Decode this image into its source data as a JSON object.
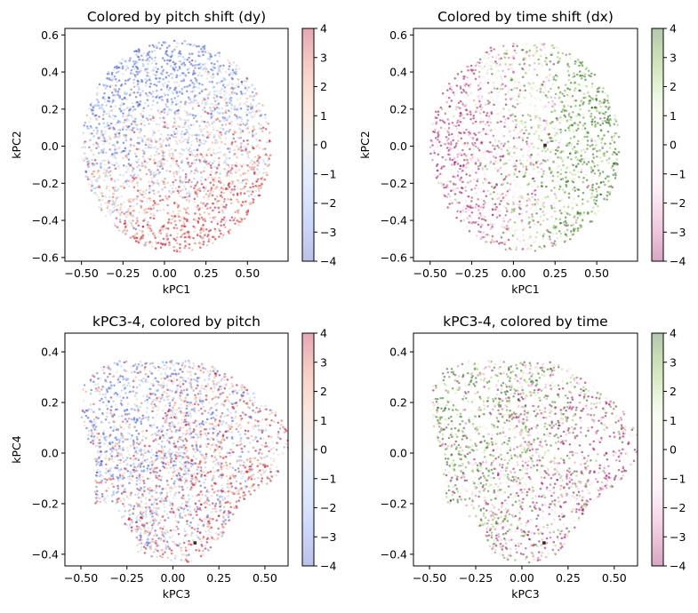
{
  "figure": {
    "layout": "2x2 subplots, each scatter with vertical colorbar on its right"
  },
  "chart_data": [
    {
      "type": "scatter",
      "id": "pitch12",
      "title": "Colored by pitch shift (dy)",
      "xlabel": "kPC1",
      "ylabel": "kPC2",
      "xlim": [
        -0.6,
        0.745
      ],
      "ylim": [
        -0.62,
        0.635
      ],
      "xticks": [
        -0.5,
        -0.25,
        0.0,
        0.25,
        0.5
      ],
      "xtick_labels": [
        "−0.50",
        "−0.25",
        "0.00",
        "0.25",
        "0.50"
      ],
      "yticks": [
        -0.6,
        -0.4,
        -0.2,
        0.0,
        0.2,
        0.4,
        0.6
      ],
      "ytick_labels": [
        "−0.6",
        "−0.4",
        "−0.2",
        "0.0",
        "0.2",
        "0.4",
        "0.6"
      ],
      "colormap": "coolwarm",
      "color_value": "pitch shift (dy)",
      "clim": [
        -4,
        4
      ],
      "cbar_ticks": [
        4,
        3,
        2,
        1,
        0,
        -1,
        -2,
        -3,
        -4
      ],
      "cbar_tick_labels": [
        "4",
        "3",
        "2",
        "1",
        "0",
        "−1",
        "−2",
        "−3",
        "−4"
      ],
      "alpha": 0.35,
      "cloud": {
        "shape": "disc",
        "center": [
          0.07,
          0.0
        ],
        "radius": 0.57,
        "n_points_approx": 9000,
        "gradient": "negative dy (blue) toward upper right, positive dy (red) toward lower left"
      },
      "highlight_points": []
    },
    {
      "type": "scatter",
      "id": "time12",
      "title": "Colored by time shift (dx)",
      "xlabel": "kPC1",
      "ylabel": "kPC2",
      "xlim": [
        -0.6,
        0.745
      ],
      "ylim": [
        -0.62,
        0.635
      ],
      "xticks": [
        -0.5,
        -0.25,
        0.0,
        0.25,
        0.5
      ],
      "xtick_labels": [
        "−0.50",
        "−0.25",
        "0.00",
        "0.25",
        "0.50"
      ],
      "yticks": [
        -0.6,
        -0.4,
        -0.2,
        0.0,
        0.2,
        0.4,
        0.6
      ],
      "ytick_labels": [
        "−0.6",
        "−0.4",
        "−0.2",
        "0.0",
        "0.2",
        "0.4",
        "0.6"
      ],
      "colormap": "PiYG",
      "color_value": "time shift (dx)",
      "clim": [
        -4,
        4
      ],
      "cbar_ticks": [
        4,
        3,
        2,
        1,
        0,
        -1,
        -2,
        -3,
        -4
      ],
      "cbar_tick_labels": [
        "4",
        "3",
        "2",
        "1",
        "0",
        "−1",
        "−2",
        "−3",
        "−4"
      ],
      "alpha": 0.35,
      "cloud": {
        "shape": "disc",
        "center": [
          0.07,
          0.0
        ],
        "radius": 0.57,
        "n_points_approx": 9000,
        "gradient": "negative dx (pink) toward left, positive dx (green) toward right"
      },
      "highlight_points": [
        {
          "x": 0.19,
          "y": 0.005
        }
      ]
    },
    {
      "type": "scatter",
      "id": "pitch34",
      "title": "kPC3-4, colored by pitch",
      "xlabel": "kPC3",
      "ylabel": "kPC4",
      "xlim": [
        -0.587,
        0.626
      ],
      "ylim": [
        -0.446,
        0.474
      ],
      "xticks": [
        -0.5,
        -0.25,
        0.0,
        0.25,
        0.5
      ],
      "xtick_labels": [
        "−0.50",
        "−0.25",
        "0.00",
        "0.25",
        "0.50"
      ],
      "yticks": [
        -0.4,
        -0.2,
        0.0,
        0.2,
        0.4
      ],
      "ytick_labels": [
        "−0.4",
        "−0.2",
        "0.0",
        "0.2",
        "0.4"
      ],
      "colormap": "coolwarm",
      "color_value": "pitch shift (dy)",
      "clim": [
        -4,
        4
      ],
      "cbar_ticks": [
        4,
        3,
        2,
        1,
        0,
        -1,
        -2,
        -3,
        -4
      ],
      "cbar_tick_labels": [
        "4",
        "3",
        "2",
        "1",
        "0",
        "−1",
        "−2",
        "−3",
        "−4"
      ],
      "alpha": 0.35,
      "cloud": {
        "shape": "blob",
        "center": [
          0.02,
          0.0
        ],
        "radius_x": 0.53,
        "radius_y": 0.4,
        "n_points_approx": 9000,
        "gradient": "blue toward left, red toward lower right; heavily mixed"
      },
      "highlight_points": [
        {
          "x": 0.12,
          "y": -0.355
        }
      ]
    },
    {
      "type": "scatter",
      "id": "time34",
      "title": "kPC3-4, colored by time",
      "xlabel": "kPC3",
      "ylabel": "",
      "xlim": [
        -0.587,
        0.626
      ],
      "ylim": [
        -0.446,
        0.474
      ],
      "xticks": [
        -0.5,
        -0.25,
        0.0,
        0.25,
        0.5
      ],
      "xtick_labels": [
        "−0.50",
        "−0.25",
        "0.00",
        "0.25",
        "0.50"
      ],
      "yticks": [
        -0.4,
        -0.2,
        0.0,
        0.2,
        0.4
      ],
      "ytick_labels": [
        "−0.4",
        "−0.2",
        "0.0",
        "0.2",
        "0.4"
      ],
      "colormap": "PiYG",
      "color_value": "time shift (dx)",
      "clim": [
        -4,
        4
      ],
      "cbar_ticks": [
        4,
        3,
        2,
        1,
        0,
        -1,
        -2,
        -3,
        -4
      ],
      "cbar_tick_labels": [
        "4",
        "3",
        "2",
        "1",
        "0",
        "−1",
        "−2",
        "−3",
        "−4"
      ],
      "alpha": 0.35,
      "cloud": {
        "shape": "blob",
        "center": [
          0.02,
          0.0
        ],
        "radius_x": 0.53,
        "radius_y": 0.4,
        "n_points_approx": 9000,
        "gradient": "green toward left, pink toward lower right; heavily mixed"
      },
      "highlight_points": [
        {
          "x": 0.12,
          "y": -0.355
        }
      ]
    }
  ],
  "colormaps": {
    "coolwarm": [
      "#3b4cc0",
      "#6f92f3",
      "#aac7fd",
      "#dddcdc",
      "#f7b89c",
      "#e7745b",
      "#b40426"
    ],
    "PiYG": [
      "#8e0152",
      "#de77ae",
      "#fde0ef",
      "#f7f7f7",
      "#e6f5d0",
      "#7fbc41",
      "#276419"
    ]
  }
}
